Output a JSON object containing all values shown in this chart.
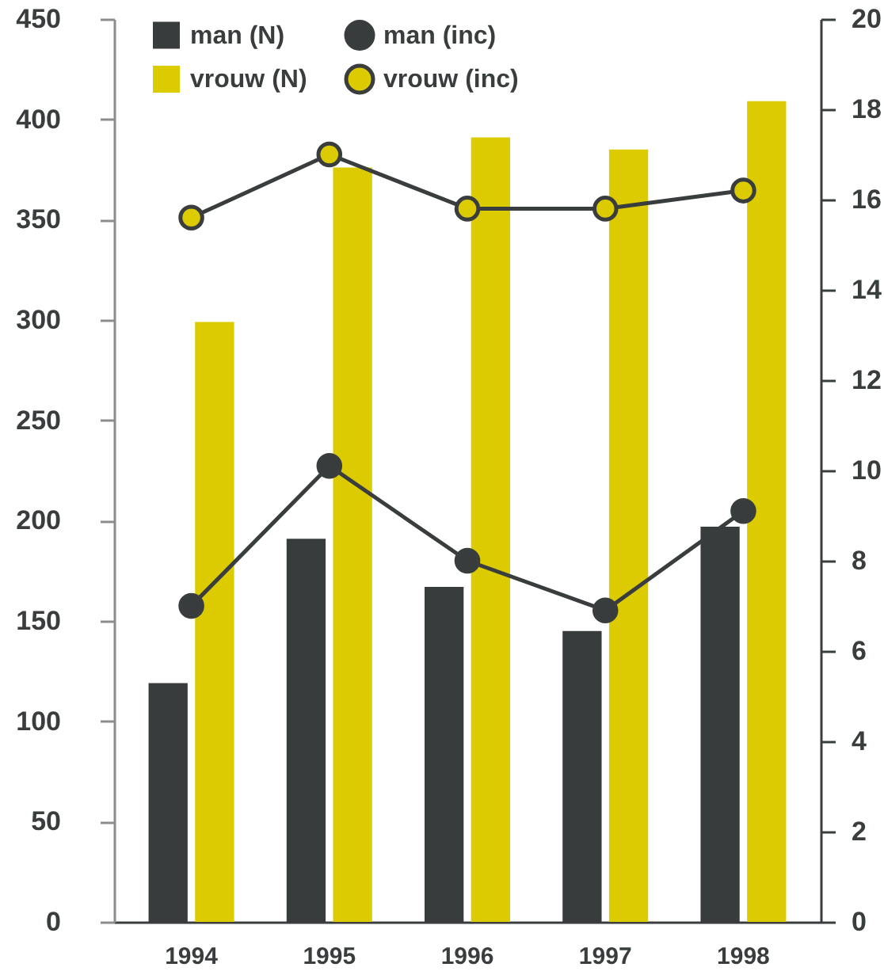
{
  "chart_data": {
    "type": "bar",
    "categories": [
      "1994",
      "1995",
      "1996",
      "1997",
      "1998"
    ],
    "series": [
      {
        "name": "man (N)",
        "color": "#393c3d",
        "values": [
          119,
          191,
          167,
          145,
          197
        ]
      },
      {
        "name": "vrouw (N)",
        "color": "#dbcb00",
        "values": [
          299,
          376,
          391,
          385,
          409
        ]
      },
      {
        "name": "man (inc)",
        "type": "line",
        "axis": "y2",
        "color": "#393c3d",
        "values": [
          7.0,
          10.1,
          8.0,
          6.9,
          9.1
        ]
      },
      {
        "name": "vrouw (inc)",
        "type": "line",
        "axis": "y2",
        "color": "#dbcb00",
        "values": [
          15.6,
          17.0,
          15.8,
          15.8,
          16.2
        ]
      }
    ],
    "ylim": [
      0,
      450
    ],
    "yticks": [
      0,
      50,
      100,
      150,
      200,
      250,
      300,
      350,
      400,
      450
    ],
    "y2lim": [
      0,
      20
    ],
    "y2ticks": [
      0,
      2,
      4,
      6,
      8,
      10,
      12,
      14,
      16,
      18,
      20
    ],
    "marker": "circle",
    "legend": "top left",
    "grid": false
  }
}
